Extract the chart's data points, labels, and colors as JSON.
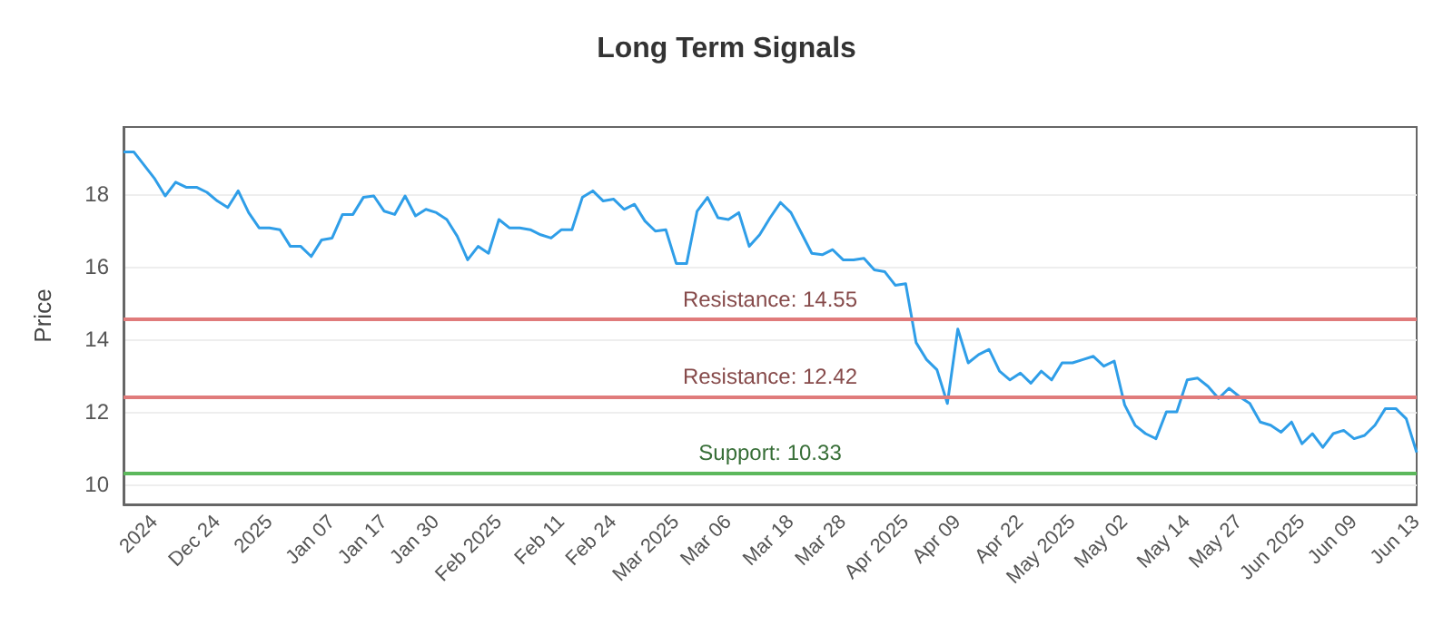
{
  "chart_data": {
    "type": "line",
    "title": "Long Term Signals",
    "ylabel": "Price",
    "categories": [
      null,
      null,
      null,
      "2024",
      null,
      null,
      null,
      null,
      null,
      "Dec 24",
      null,
      null,
      null,
      null,
      "2025",
      null,
      null,
      null,
      null,
      null,
      "Jan 07",
      null,
      null,
      null,
      null,
      "Jan 17",
      null,
      null,
      null,
      null,
      "Jan 30",
      null,
      null,
      null,
      null,
      null,
      "Feb 2025",
      null,
      null,
      null,
      null,
      null,
      "Feb 11",
      null,
      null,
      null,
      null,
      "Feb 24",
      null,
      null,
      null,
      null,
      null,
      "Mar 2025",
      null,
      null,
      null,
      null,
      "Mar 06",
      null,
      null,
      null,
      null,
      null,
      "Mar 18",
      null,
      null,
      null,
      null,
      "Mar 28",
      null,
      null,
      null,
      null,
      null,
      "Apr 2025",
      null,
      null,
      null,
      null,
      "Apr 09",
      null,
      null,
      null,
      null,
      null,
      "Apr 22",
      null,
      null,
      null,
      null,
      "May 2025",
      null,
      null,
      null,
      null,
      "May 02",
      null,
      null,
      null,
      null,
      null,
      "May 14",
      null,
      null,
      null,
      null,
      "May 27",
      null,
      null,
      null,
      null,
      null,
      "Jun 2025",
      null,
      null,
      null,
      null,
      "Jun 09",
      null,
      null,
      null,
      null,
      null,
      "Jun 13"
    ],
    "series": [
      {
        "color": "#2f9ee8",
        "values": [
          19.16,
          19.16,
          18.79,
          18.42,
          17.95,
          18.33,
          18.19,
          18.19,
          18.05,
          17.81,
          17.63,
          18.09,
          17.49,
          17.07,
          17.07,
          17.02,
          16.56,
          16.56,
          16.28,
          16.74,
          16.79,
          17.44,
          17.44,
          17.91,
          17.95,
          17.53,
          17.44,
          17.95,
          17.4,
          17.58,
          17.49,
          17.3,
          16.84,
          16.19,
          16.56,
          16.37,
          17.3,
          17.07,
          17.07,
          17.02,
          16.88,
          16.79,
          17.02,
          17.02,
          17.91,
          18.09,
          17.81,
          17.86,
          17.58,
          17.72,
          17.26,
          16.98,
          17.02,
          16.09,
          16.09,
          17.53,
          17.91,
          17.35,
          17.3,
          17.49,
          16.56,
          16.88,
          17.35,
          17.77,
          17.49,
          16.93,
          16.37,
          16.33,
          16.47,
          16.19,
          16.19,
          16.23,
          15.91,
          15.86,
          15.49,
          15.53,
          13.91,
          13.44,
          13.16,
          12.23,
          14.28,
          13.35,
          13.58,
          13.72,
          13.12,
          12.88,
          13.07,
          12.79,
          13.12,
          12.88,
          13.35,
          13.35,
          13.44,
          13.53,
          13.26,
          13.4,
          12.19,
          11.63,
          11.4,
          11.26,
          12.0,
          12.0,
          12.88,
          12.93,
          12.7,
          12.37,
          12.65,
          12.42,
          12.23,
          11.72,
          11.63,
          11.44,
          11.72,
          11.12,
          11.4,
          11.02,
          11.4,
          11.49,
          11.26,
          11.35,
          11.63,
          12.09,
          12.09,
          11.81,
          10.88
        ]
      }
    ],
    "ylim": [
      9.45,
      19.85
    ],
    "yticks": [
      10,
      12,
      14,
      16,
      18
    ],
    "grid": "y",
    "marker": "none",
    "line_style": "solid",
    "ref_lines": [
      {
        "axis": "y",
        "value": 14.55,
        "label": "Resistance: 14.55",
        "color": "#e07b7b"
      },
      {
        "axis": "y",
        "value": 12.42,
        "label": "Resistance: 12.42",
        "color": "#e07b7b"
      },
      {
        "axis": "y",
        "value": 10.33,
        "label": "Support: 10.33",
        "color": "#5cb85c"
      }
    ]
  }
}
